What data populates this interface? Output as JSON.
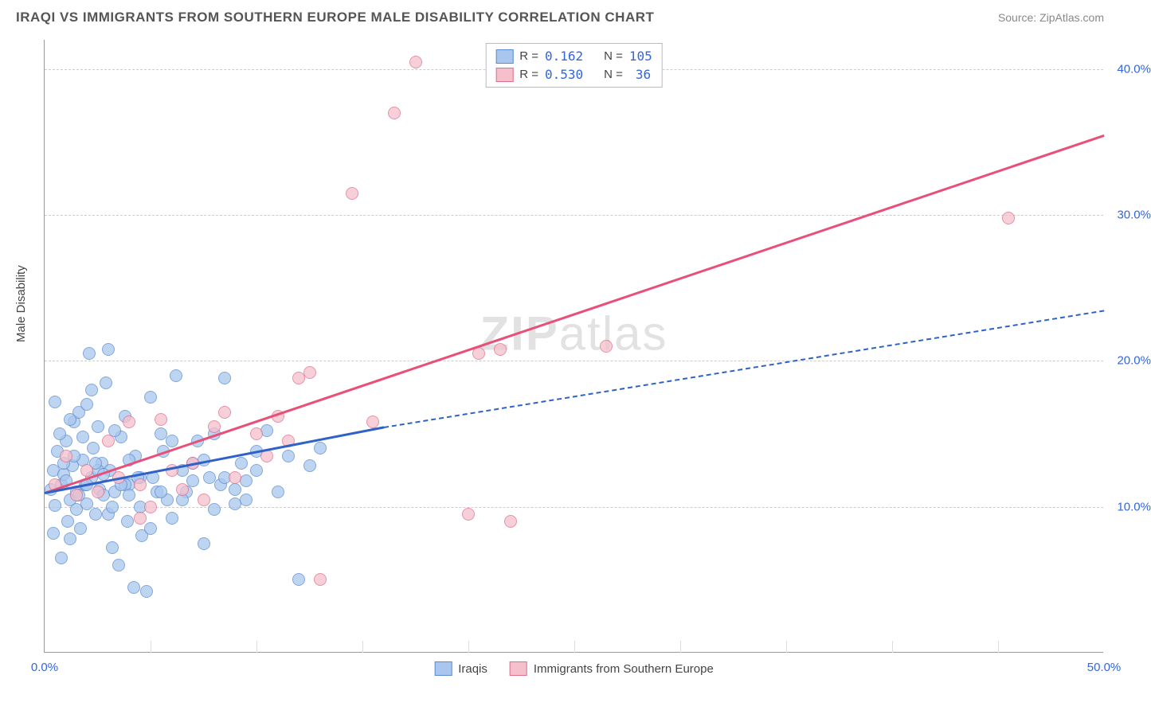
{
  "header": {
    "title": "IRAQI VS IMMIGRANTS FROM SOUTHERN EUROPE MALE DISABILITY CORRELATION CHART",
    "source": "Source: ZipAtlas.com"
  },
  "chart": {
    "type": "scatter",
    "ylabel": "Male Disability",
    "watermark_a": "ZIP",
    "watermark_b": "atlas",
    "xlim": [
      0,
      50
    ],
    "ylim": [
      0,
      42
    ],
    "yticks": [
      10,
      20,
      30,
      40
    ],
    "ytick_labels": [
      "10.0%",
      "20.0%",
      "30.0%",
      "40.0%"
    ],
    "xtick_major_labels": {
      "0": "0.0%",
      "50": "50.0%"
    },
    "xticks_minor": [
      5,
      10,
      15,
      20,
      25,
      30,
      35,
      40,
      45
    ],
    "background_color": "#ffffff",
    "grid_color": "#cccccc",
    "series": {
      "iraqis": {
        "label": "Iraqis",
        "marker_fill": "#a9c7ee",
        "marker_border": "#5a8ad0",
        "trend_color": "#2f62c9",
        "trend_solid": {
          "x1": 0,
          "y1": 11.0,
          "x2": 16,
          "y2": 15.5
        },
        "trend_dashed": {
          "x1": 16,
          "y1": 15.5,
          "x2": 50,
          "y2": 23.5
        },
        "R_label": "R =",
        "R": "0.162",
        "N_label": "N =",
        "N": "105",
        "points": [
          [
            0.3,
            11.2
          ],
          [
            0.4,
            12.5
          ],
          [
            0.5,
            10.1
          ],
          [
            0.6,
            13.8
          ],
          [
            0.8,
            11.5
          ],
          [
            0.9,
            12.2
          ],
          [
            1.0,
            14.5
          ],
          [
            1.1,
            9.0
          ],
          [
            1.2,
            10.5
          ],
          [
            1.3,
            12.8
          ],
          [
            1.4,
            15.8
          ],
          [
            1.5,
            11.0
          ],
          [
            1.6,
            16.5
          ],
          [
            1.7,
            8.5
          ],
          [
            1.8,
            13.2
          ],
          [
            1.9,
            11.5
          ],
          [
            2.0,
            17.0
          ],
          [
            2.1,
            20.5
          ],
          [
            2.2,
            12.0
          ],
          [
            2.3,
            14.0
          ],
          [
            2.4,
            9.5
          ],
          [
            2.5,
            15.5
          ],
          [
            2.6,
            11.2
          ],
          [
            2.7,
            13.0
          ],
          [
            2.8,
            10.8
          ],
          [
            2.9,
            18.5
          ],
          [
            3.0,
            20.8
          ],
          [
            3.1,
            12.5
          ],
          [
            3.2,
            7.2
          ],
          [
            3.3,
            11.0
          ],
          [
            3.5,
            6.0
          ],
          [
            3.6,
            14.8
          ],
          [
            3.8,
            16.2
          ],
          [
            3.9,
            9.0
          ],
          [
            4.0,
            11.5
          ],
          [
            4.2,
            4.5
          ],
          [
            4.3,
            13.5
          ],
          [
            4.5,
            10.0
          ],
          [
            4.6,
            8.0
          ],
          [
            4.8,
            4.2
          ],
          [
            5.0,
            17.5
          ],
          [
            5.1,
            12.0
          ],
          [
            5.3,
            11.0
          ],
          [
            5.5,
            15.0
          ],
          [
            5.6,
            13.8
          ],
          [
            5.8,
            10.5
          ],
          [
            6.0,
            9.2
          ],
          [
            6.2,
            19.0
          ],
          [
            6.5,
            12.5
          ],
          [
            6.7,
            11.0
          ],
          [
            7.0,
            13.0
          ],
          [
            7.2,
            14.5
          ],
          [
            7.5,
            7.5
          ],
          [
            7.8,
            12.0
          ],
          [
            8.0,
            15.0
          ],
          [
            8.3,
            11.5
          ],
          [
            8.5,
            18.8
          ],
          [
            9.0,
            10.2
          ],
          [
            9.3,
            13.0
          ],
          [
            9.5,
            11.8
          ],
          [
            10.0,
            12.5
          ],
          [
            10.5,
            15.2
          ],
          [
            11.0,
            11.0
          ],
          [
            11.5,
            13.5
          ],
          [
            12.0,
            5.0
          ],
          [
            12.5,
            12.8
          ],
          [
            13.0,
            14.0
          ],
          [
            0.5,
            17.2
          ],
          [
            0.7,
            15.0
          ],
          [
            0.9,
            13.0
          ],
          [
            1.0,
            11.8
          ],
          [
            1.2,
            16.0
          ],
          [
            1.5,
            9.8
          ],
          [
            1.8,
            14.8
          ],
          [
            2.0,
            10.2
          ],
          [
            2.2,
            18.0
          ],
          [
            2.5,
            12.5
          ],
          [
            3.0,
            9.5
          ],
          [
            3.3,
            15.2
          ],
          [
            3.8,
            11.5
          ],
          [
            4.0,
            13.2
          ],
          [
            4.5,
            12.0
          ],
          [
            5.0,
            8.5
          ],
          [
            5.5,
            11.0
          ],
          [
            6.0,
            14.5
          ],
          [
            6.5,
            10.5
          ],
          [
            7.0,
            11.8
          ],
          [
            7.5,
            13.2
          ],
          [
            8.0,
            9.8
          ],
          [
            8.5,
            12.0
          ],
          [
            9.0,
            11.2
          ],
          [
            9.5,
            10.5
          ],
          [
            10.0,
            13.8
          ],
          [
            0.4,
            8.2
          ],
          [
            0.8,
            6.5
          ],
          [
            1.2,
            7.8
          ],
          [
            1.4,
            13.5
          ],
          [
            1.6,
            10.8
          ],
          [
            2.0,
            11.5
          ],
          [
            2.4,
            13.0
          ],
          [
            2.8,
            12.2
          ],
          [
            3.2,
            10.0
          ],
          [
            3.6,
            11.5
          ],
          [
            4.0,
            10.8
          ],
          [
            4.4,
            12.0
          ]
        ]
      },
      "southern_europe": {
        "label": "Immigrants from Southern Europe",
        "marker_fill": "#f5c0cb",
        "marker_border": "#de6f8b",
        "trend_color": "#e94f77",
        "trend_solid": {
          "x1": 0,
          "y1": 11.0,
          "x2": 50,
          "y2": 35.5
        },
        "R_label": "R =",
        "R": "0.530",
        "N_label": "N =",
        "N": "36",
        "points": [
          [
            0.5,
            11.5
          ],
          [
            1.0,
            13.5
          ],
          [
            1.5,
            10.8
          ],
          [
            2.0,
            12.5
          ],
          [
            2.5,
            11.0
          ],
          [
            3.0,
            14.5
          ],
          [
            3.5,
            12.0
          ],
          [
            4.0,
            15.8
          ],
          [
            4.5,
            11.5
          ],
          [
            5.0,
            10.0
          ],
          [
            5.5,
            16.0
          ],
          [
            6.0,
            12.5
          ],
          [
            6.5,
            11.2
          ],
          [
            7.0,
            13.0
          ],
          [
            7.5,
            10.5
          ],
          [
            8.0,
            15.5
          ],
          [
            8.5,
            16.5
          ],
          [
            9.0,
            12.0
          ],
          [
            10.0,
            15.0
          ],
          [
            10.5,
            13.5
          ],
          [
            11.0,
            16.2
          ],
          [
            11.5,
            14.5
          ],
          [
            12.0,
            18.8
          ],
          [
            12.5,
            19.2
          ],
          [
            13.0,
            5.0
          ],
          [
            14.5,
            31.5
          ],
          [
            15.5,
            15.8
          ],
          [
            16.5,
            37.0
          ],
          [
            17.5,
            40.5
          ],
          [
            20.0,
            9.5
          ],
          [
            20.5,
            20.5
          ],
          [
            21.5,
            20.8
          ],
          [
            22.0,
            9.0
          ],
          [
            26.5,
            21.0
          ],
          [
            45.5,
            29.8
          ],
          [
            4.5,
            9.2
          ]
        ]
      }
    }
  }
}
